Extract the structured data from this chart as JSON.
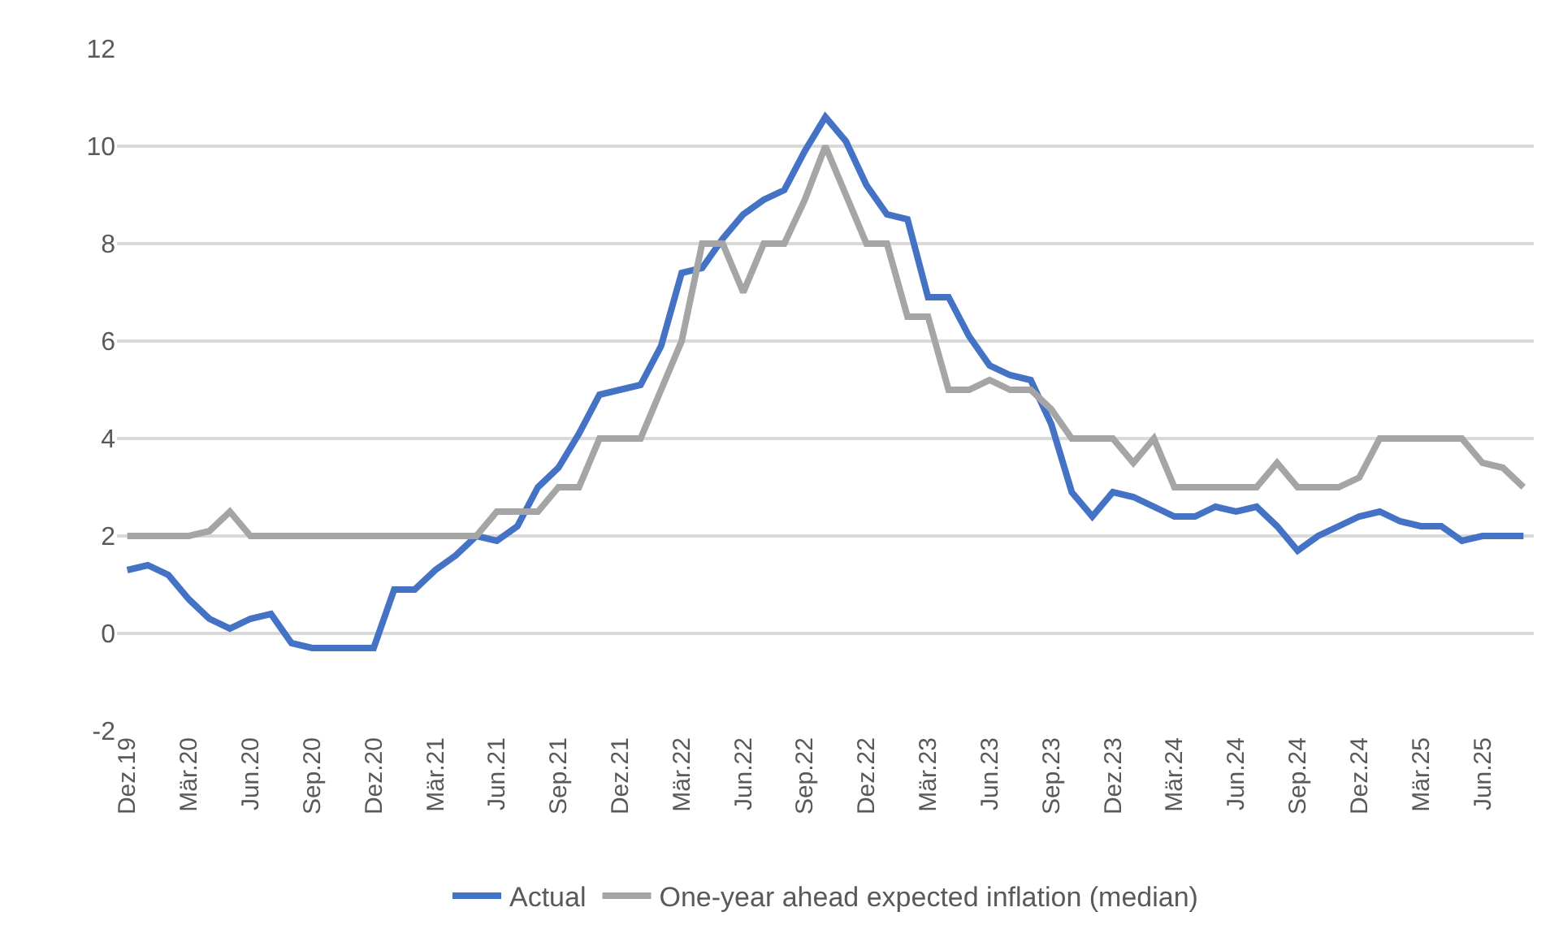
{
  "chart_data": {
    "type": "line",
    "categories": [
      "Dez.19",
      null,
      null,
      "Mär.20",
      null,
      null,
      "Jun.20",
      null,
      null,
      "Sep.20",
      null,
      null,
      "Dez.20",
      null,
      null,
      "Mär.21",
      null,
      null,
      "Jun.21",
      null,
      null,
      "Sep.21",
      null,
      null,
      "Dez.21",
      null,
      null,
      "Mär.22",
      null,
      null,
      "Jun.22",
      null,
      null,
      "Sep.22",
      null,
      null,
      "Dez.22",
      null,
      null,
      "Mär.23",
      null,
      null,
      "Jun.23",
      null,
      null,
      "Sep.23",
      null,
      null,
      "Dez.23",
      null,
      null,
      "Mär.24",
      null,
      null,
      "Jun.24",
      null,
      null,
      "Sep.24",
      null,
      null,
      "Dez.24",
      null,
      null,
      "Mär.25",
      null,
      null,
      "Jun.25",
      null,
      null
    ],
    "series": [
      {
        "name": "Actual",
        "color": "#4472c4",
        "values": [
          1.3,
          1.4,
          1.2,
          0.7,
          0.3,
          0.1,
          0.3,
          0.4,
          -0.2,
          -0.3,
          -0.3,
          -0.3,
          -0.3,
          0.9,
          0.9,
          1.3,
          1.6,
          2.0,
          1.9,
          2.2,
          3.0,
          3.4,
          4.1,
          4.9,
          5.0,
          5.1,
          5.9,
          7.4,
          7.5,
          8.1,
          8.6,
          8.9,
          9.1,
          9.9,
          10.6,
          10.1,
          9.2,
          8.6,
          8.5,
          6.9,
          6.9,
          6.1,
          5.5,
          5.3,
          5.2,
          4.3,
          2.9,
          2.4,
          2.9,
          2.8,
          2.6,
          2.4,
          2.4,
          2.6,
          2.5,
          2.6,
          2.2,
          1.7,
          2.0,
          2.2,
          2.4,
          2.5,
          2.3,
          2.2,
          2.2,
          1.9,
          2.0,
          2.0,
          2.0
        ]
      },
      {
        "name": "One-year ahead expected inflation (median)",
        "color": "#a5a5a5",
        "values": [
          2.0,
          2.0,
          2.0,
          2.0,
          2.1,
          2.5,
          2.0,
          2.0,
          2.0,
          2.0,
          2.0,
          2.0,
          2.0,
          2.0,
          2.0,
          2.0,
          2.0,
          2.0,
          2.5,
          2.5,
          2.5,
          3.0,
          3.0,
          4.0,
          4.0,
          4.0,
          5.0,
          6.0,
          8.0,
          8.0,
          7.0,
          8.0,
          8.0,
          8.9,
          10.0,
          9.0,
          8.0,
          8.0,
          6.5,
          6.5,
          5.0,
          5.0,
          5.2,
          5.0,
          5.0,
          4.6,
          4.0,
          4.0,
          4.0,
          3.5,
          4.0,
          3.0,
          3.0,
          3.0,
          3.0,
          3.0,
          3.5,
          3.0,
          3.0,
          3.0,
          3.2,
          4.0,
          4.0,
          4.0,
          4.0,
          4.0,
          3.5,
          3.4,
          3.0
        ]
      }
    ],
    "ylim": [
      -2,
      12
    ],
    "yticks": [
      -2,
      0,
      2,
      4,
      6,
      8,
      10,
      12
    ],
    "grid": "y",
    "legend": "bottom",
    "marker": "none",
    "line_style": "solid"
  }
}
